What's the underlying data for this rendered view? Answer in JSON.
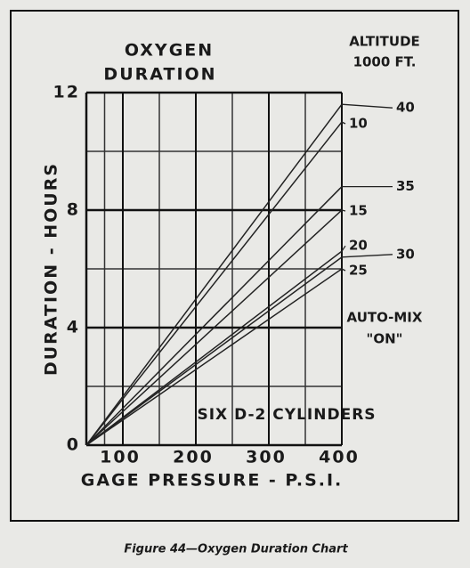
{
  "chart_data": {
    "type": "line",
    "title": [
      "OXYGEN",
      "DURATION"
    ],
    "legend_title": [
      "ALTITUDE",
      "1000 FT."
    ],
    "annotations": [
      [
        "AUTO-MIX",
        "\"ON\""
      ],
      "SIX D-2 CYLINDERS"
    ],
    "xlabel": "GAGE PRESSURE - P.S.I.",
    "ylabel": "DURATION - HOURS",
    "caption": "Figure 44—Oxygen Duration Chart",
    "x": [
      50,
      400
    ],
    "xlim": [
      50,
      400
    ],
    "xticks": [
      100,
      200,
      300,
      400
    ],
    "ylim": [
      0,
      12
    ],
    "yticks": [
      0,
      4,
      8,
      12
    ],
    "grid": true,
    "series": [
      {
        "name": "40",
        "color": "#222",
        "values": [
          0,
          11.6
        ]
      },
      {
        "name": "10",
        "color": "#222",
        "values": [
          0,
          11.0
        ]
      },
      {
        "name": "35",
        "color": "#222",
        "values": [
          0,
          8.8
        ]
      },
      {
        "name": "15",
        "color": "#222",
        "values": [
          0,
          8.0
        ]
      },
      {
        "name": "20",
        "color": "#222",
        "values": [
          0,
          6.6
        ]
      },
      {
        "name": "30",
        "color": "#222",
        "values": [
          0,
          6.4
        ]
      },
      {
        "name": "25",
        "color": "#222",
        "values": [
          0,
          6.0
        ]
      }
    ]
  }
}
